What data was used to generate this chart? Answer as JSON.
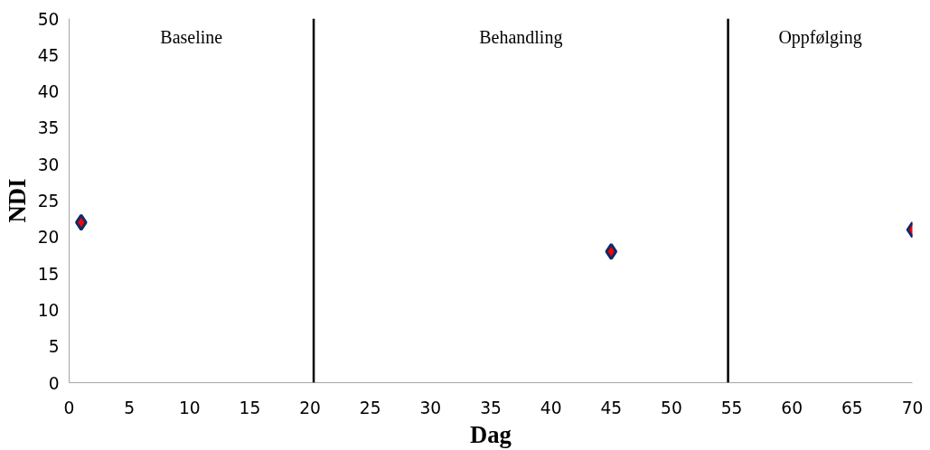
{
  "chart_data": {
    "type": "scatter",
    "xlabel": "Dag",
    "ylabel": "NDI",
    "x": [
      1,
      45,
      70
    ],
    "series": [
      {
        "color": "#0f2a66",
        "values": [
          22,
          18,
          21
        ]
      }
    ],
    "marker": "diamond",
    "grid": false,
    "xlim": [
      0,
      70
    ],
    "xticks": [
      0,
      5,
      10,
      15,
      20,
      25,
      30,
      35,
      40,
      45,
      50,
      55,
      60,
      65,
      70
    ],
    "ylim": [
      0,
      50
    ],
    "yticks": [
      0,
      5,
      10,
      15,
      20,
      25,
      30,
      35,
      40,
      45,
      50
    ],
    "ref_lines": [
      {
        "axis": "x",
        "value": 20.3,
        "color": "#000000"
      },
      {
        "axis": "x",
        "value": 54.7,
        "color": "#000000"
      }
    ],
    "annotations": [
      "Baseline",
      "Behandling",
      "Oppfølging"
    ]
  }
}
